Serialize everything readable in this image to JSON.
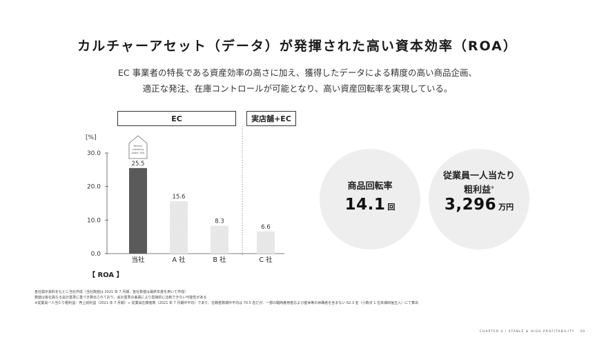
{
  "title": "カルチャーアセット（データ）が発揮された高い資本効率（ROA）",
  "lead": [
    "EC 事業者の特長である資産効率の高さに加え、獲得したデータによる精度の高い商品企画、",
    "適正な発注、在庫コントロールが可能となり、高い資産回転率を実現している。"
  ],
  "groups": {
    "ec": "EC",
    "store": "実店舗+EC"
  },
  "chart_data": {
    "type": "bar",
    "categories": [
      "当社",
      "A 社",
      "B 社",
      "C 社"
    ],
    "values": [
      25.5,
      15.6,
      8.3,
      6.6
    ],
    "value_labels": [
      "25.5",
      "15.6",
      "8.3",
      "6.6"
    ],
    "ylabel": "[%]",
    "ylim": [
      0,
      30
    ],
    "yticks": [
      "0.0",
      "10.0",
      "20.0",
      "30.0"
    ],
    "xlabel": "【 ROA 】",
    "colors": {
      "highlight": "#5a5a5a",
      "others": "#e6e6e6"
    },
    "house_label": [
      "Rethink,",
      "publishing",
      "power, ROA"
    ]
  },
  "stats": [
    {
      "label_lines": [
        "商品回転率"
      ],
      "value": "14.1",
      "unit": "回"
    },
    {
      "label_lines": [
        "従業員一人当たり",
        "粗利益"
      ],
      "mark": "※",
      "value": "3,296",
      "unit": "万円"
    }
  ],
  "notes": [
    "各社開示資料をもとに当社作成（当社数値は 2021 年 7 月期、各社数値は最終年度を用いて作成）",
    "数値は各社異なる会計基準に基づき算出されており、会計基準の差異により直接的に比較できない可能性がある",
    "※従業員一人当たり粗利益：売上総利益（2021 年 7 月期）÷ 従業員在籍者数（2021 年 7 月期中平均）であり、在籍者数期中平均は 70.5 名だが、一部の臨時雇用者および産休等の休職者を含まない 62.3 名（小数点 1 位未満四捨五入）にて算出"
  ],
  "footer": "CHAPTER 4 / STABLE & HIGH PROFITABILITY　 30"
}
